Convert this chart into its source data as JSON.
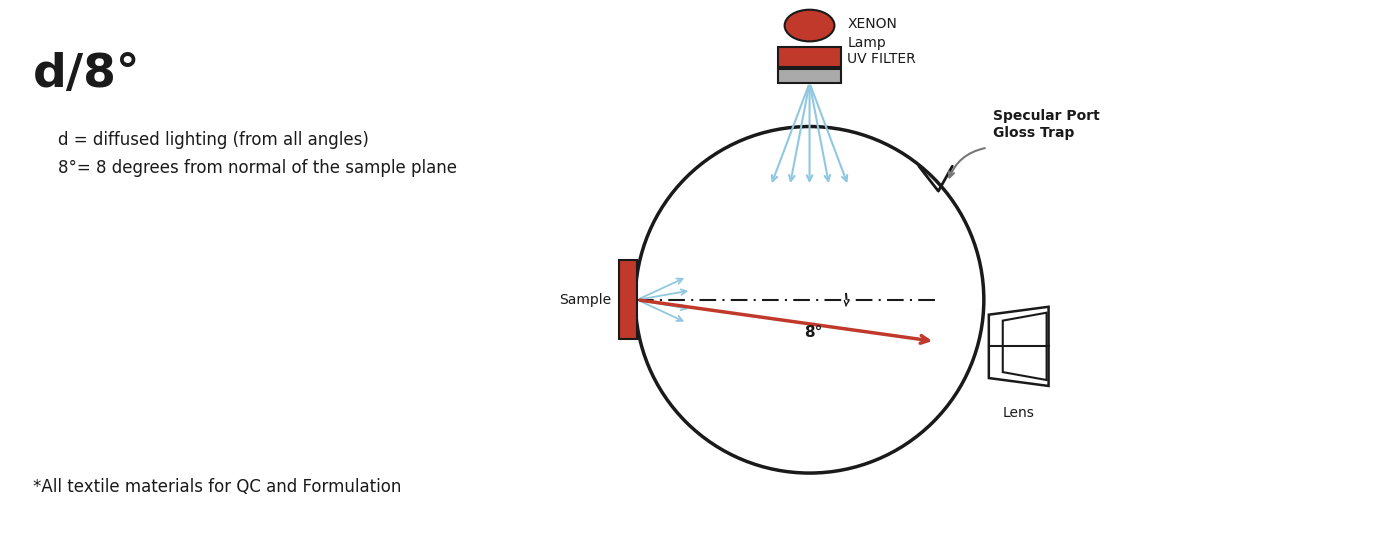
{
  "title": "d/8°",
  "subtitle_line1": "d = diffused lighting (from all angles)",
  "subtitle_line2": "8°= 8 degrees from normal of the sample plane",
  "footnote": "*All textile materials for QC and Formulation",
  "label_xenon": "XENON\nLamp",
  "label_uv": "UV FILTER",
  "label_sample": "Sample",
  "label_lens": "Lens",
  "label_specular": "Specular Port\nGloss Trap",
  "label_8deg": "8°",
  "bg_color": "#ffffff",
  "red_color": "#c0392b",
  "light_blue_color": "#90c8e0",
  "dark_color": "#1a1a1a",
  "gray_color": "#777777"
}
